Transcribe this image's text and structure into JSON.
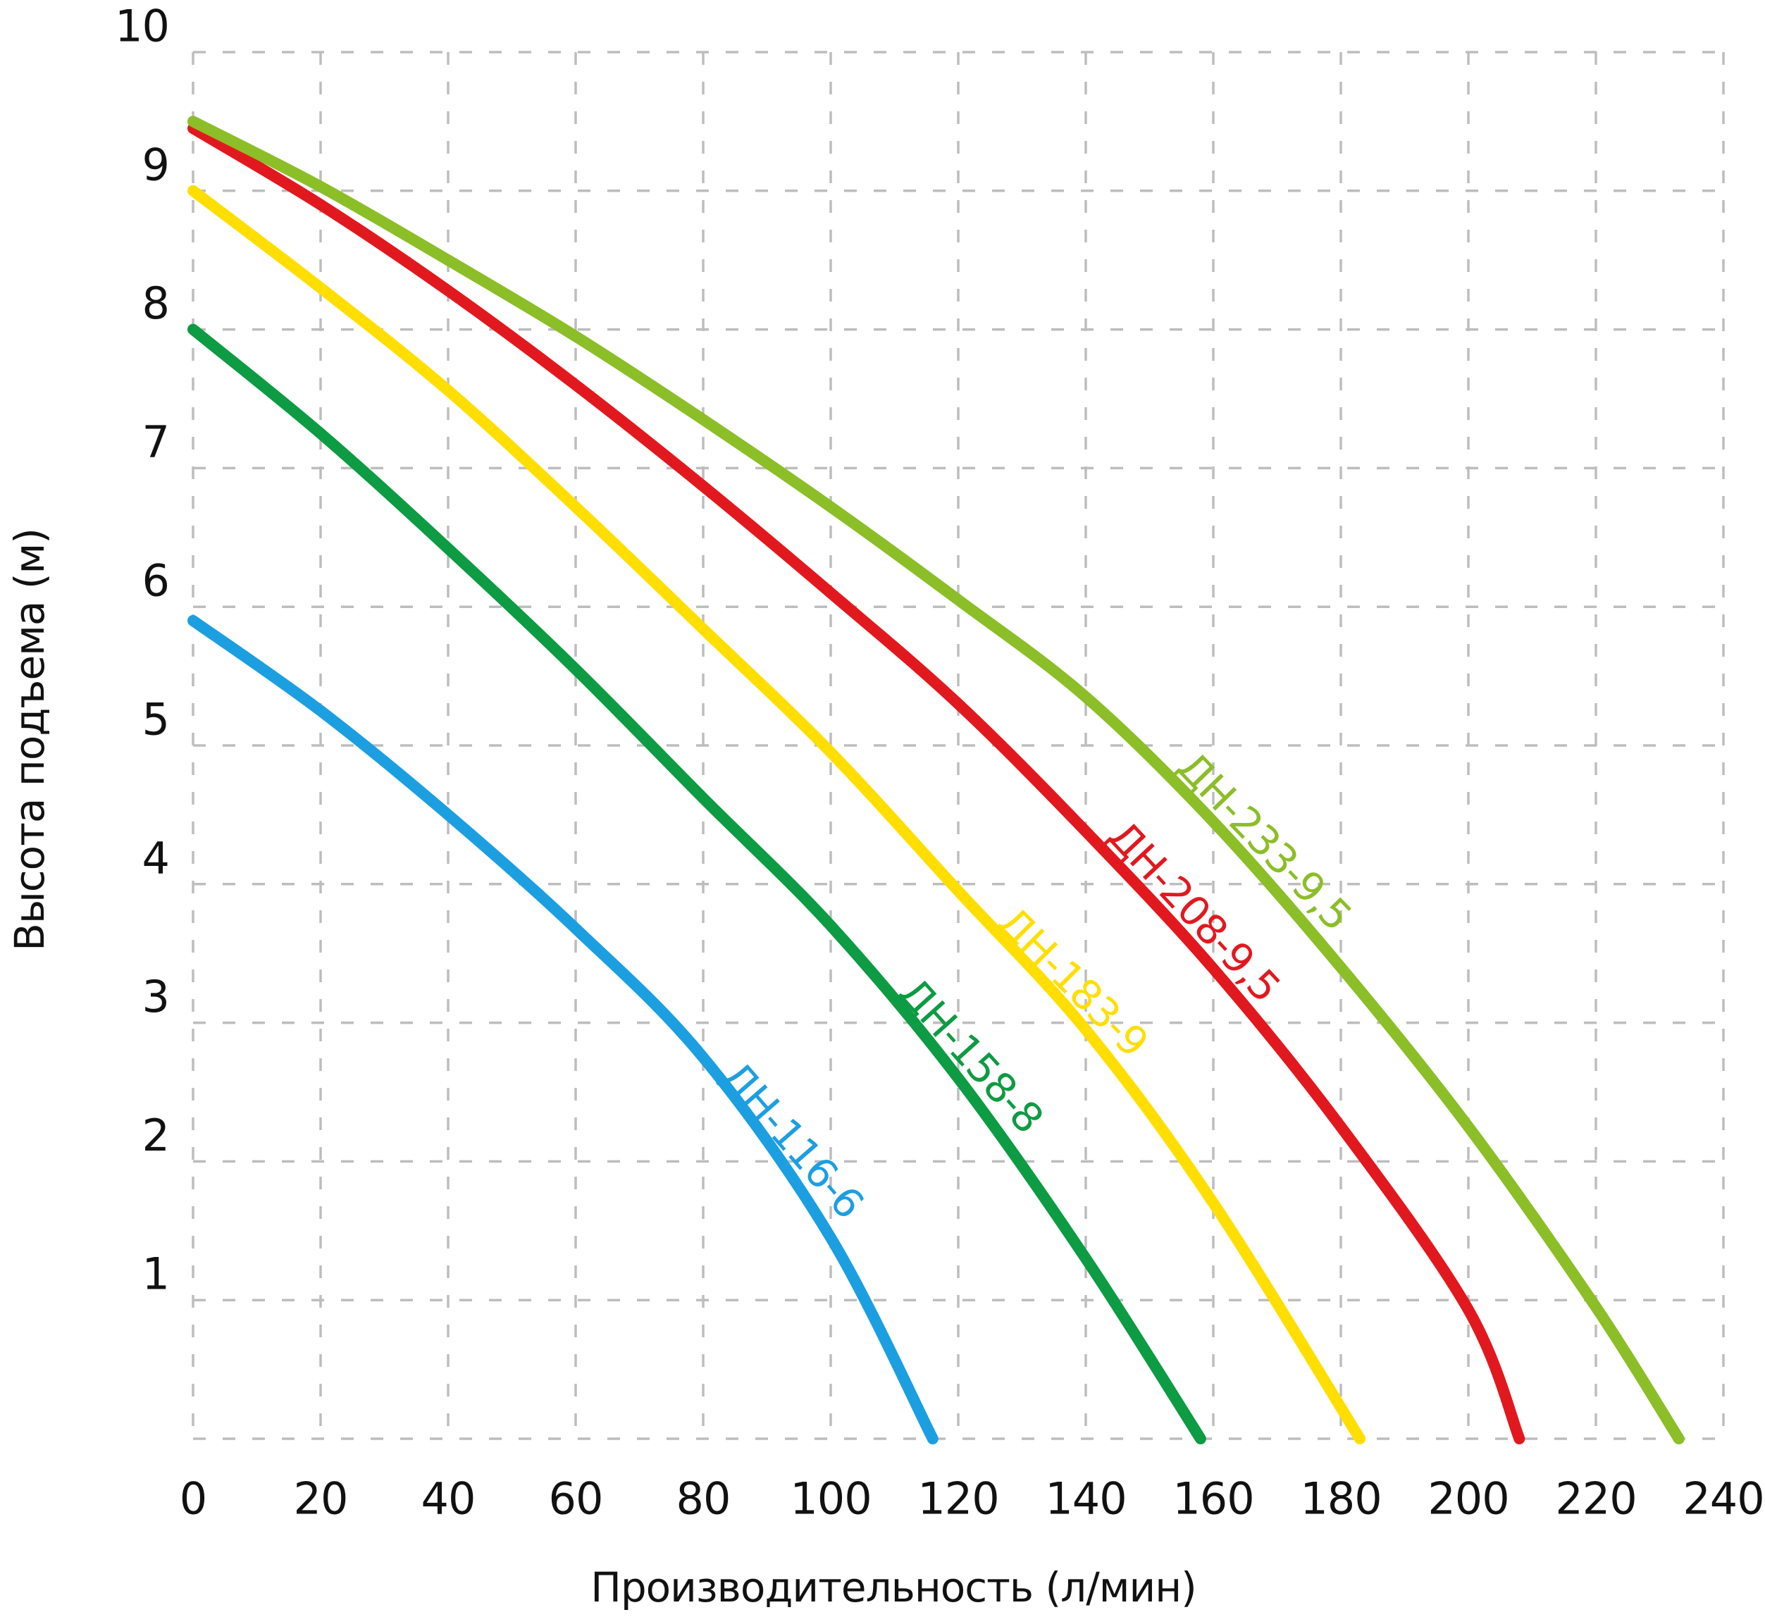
{
  "chart_data": {
    "type": "line",
    "title": "",
    "xlabel": "Производительность (л/мин)",
    "ylabel": "Высота подъема (м)",
    "xlim": [
      0,
      240
    ],
    "ylim": [
      0,
      10
    ],
    "x_ticks": [
      0,
      20,
      40,
      60,
      80,
      100,
      120,
      140,
      160,
      180,
      200,
      220,
      240
    ],
    "y_ticks": [
      1,
      2,
      3,
      4,
      5,
      6,
      7,
      8,
      9,
      10
    ],
    "grid": "dashed",
    "grid_color": "#bdbdbd",
    "text_color": "#111111",
    "background_color": "#ffffff",
    "legend_position": "inline-curve-labels",
    "series": [
      {
        "name": "ДН-116-6",
        "color": "#1c9fe0",
        "points": [
          [
            0,
            5.9
          ],
          [
            20,
            5.25
          ],
          [
            40,
            4.5
          ],
          [
            60,
            3.68
          ],
          [
            80,
            2.75
          ],
          [
            100,
            1.45
          ],
          [
            116,
            0
          ]
        ],
        "label": {
          "q": 94,
          "dy": -62,
          "angle": 49
        }
      },
      {
        "name": "ДН-158-8",
        "color": "#0d9b43",
        "points": [
          [
            0,
            8.0
          ],
          [
            20,
            7.25
          ],
          [
            40,
            6.42
          ],
          [
            60,
            5.55
          ],
          [
            80,
            4.62
          ],
          [
            100,
            3.7
          ],
          [
            120,
            2.6
          ],
          [
            140,
            1.3
          ],
          [
            158,
            0
          ]
        ],
        "label": {
          "q": 122,
          "dy": -58,
          "angle": 48
        }
      },
      {
        "name": "ДН-183-9",
        "color": "#ffde00",
        "points": [
          [
            0,
            9.0
          ],
          [
            20,
            8.3
          ],
          [
            40,
            7.56
          ],
          [
            60,
            6.72
          ],
          [
            80,
            5.84
          ],
          [
            100,
            4.95
          ],
          [
            120,
            3.95
          ],
          [
            140,
            2.95
          ],
          [
            160,
            1.7
          ],
          [
            183,
            0
          ]
        ],
        "label": {
          "q": 138,
          "dy": -48,
          "angle": 45
        }
      },
      {
        "name": "ДН-208-9,5",
        "color": "#e1191f",
        "points": [
          [
            0,
            9.45
          ],
          [
            20,
            8.9
          ],
          [
            40,
            8.28
          ],
          [
            60,
            7.6
          ],
          [
            80,
            6.87
          ],
          [
            100,
            6.1
          ],
          [
            120,
            5.3
          ],
          [
            140,
            4.38
          ],
          [
            160,
            3.39
          ],
          [
            180,
            2.25
          ],
          [
            200,
            0.93
          ],
          [
            208,
            0
          ]
        ],
        "label": {
          "q": 157,
          "dy": -52,
          "angle": 47
        }
      },
      {
        "name": "ДН-233-9,5",
        "color": "#8cbe27",
        "points": [
          [
            0,
            9.5
          ],
          [
            20,
            9.03
          ],
          [
            40,
            8.5
          ],
          [
            60,
            7.95
          ],
          [
            80,
            7.35
          ],
          [
            100,
            6.72
          ],
          [
            120,
            6.05
          ],
          [
            140,
            5.35
          ],
          [
            160,
            4.45
          ],
          [
            180,
            3.4
          ],
          [
            200,
            2.25
          ],
          [
            220,
            0.95
          ],
          [
            233,
            0
          ]
        ],
        "label": {
          "q": 168,
          "dy": -55,
          "angle": 46
        }
      }
    ]
  }
}
